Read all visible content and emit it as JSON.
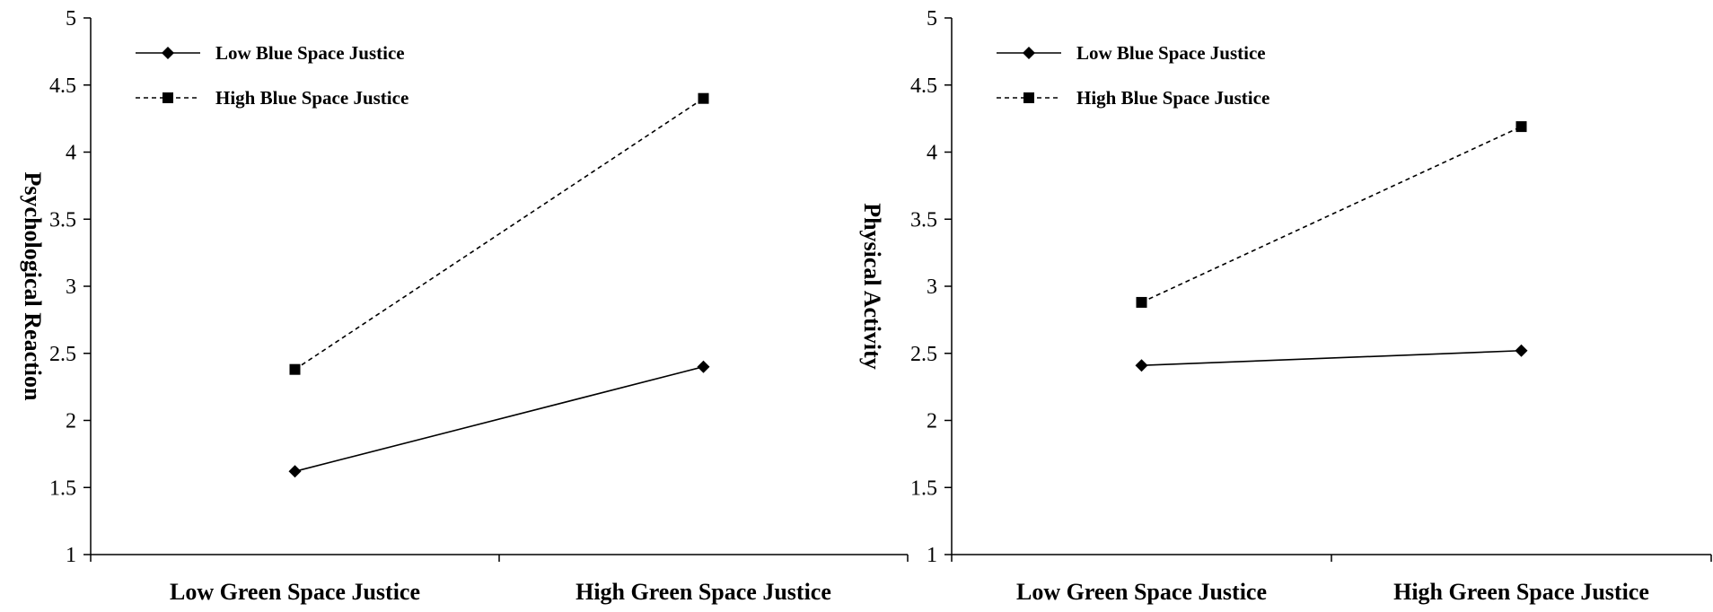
{
  "chart_data": [
    {
      "type": "line",
      "ylabel": "Psychological Reaction",
      "xlabel": "",
      "categories": [
        "Low Green Space Justice",
        "High Green Space Justice"
      ],
      "ylim": [
        1,
        5
      ],
      "yticks": [
        "1",
        "1.5",
        "2",
        "2.5",
        "3",
        "3.5",
        "4",
        "4.5",
        "5"
      ],
      "grid": false,
      "legend_position": "top-left",
      "series": [
        {
          "name": "Low Blue Space Justice",
          "values": [
            1.62,
            2.4
          ],
          "style": "solid",
          "marker": "diamond"
        },
        {
          "name": "High Blue Space Justice",
          "values": [
            2.38,
            4.4
          ],
          "style": "dashed",
          "marker": "square"
        }
      ]
    },
    {
      "type": "line",
      "ylabel": "Physical Activity",
      "xlabel": "",
      "categories": [
        "Low Green Space Justice",
        "High Green Space Justice"
      ],
      "ylim": [
        1,
        5
      ],
      "yticks": [
        "1",
        "1.5",
        "2",
        "2.5",
        "3",
        "3.5",
        "4",
        "4.5",
        "5"
      ],
      "grid": false,
      "legend_position": "top-left",
      "series": [
        {
          "name": "Low Blue Space Justice",
          "values": [
            2.41,
            2.52
          ],
          "style": "solid",
          "marker": "diamond"
        },
        {
          "name": "High Blue Space Justice",
          "values": [
            2.88,
            4.19
          ],
          "style": "dashed",
          "marker": "square"
        }
      ]
    }
  ]
}
